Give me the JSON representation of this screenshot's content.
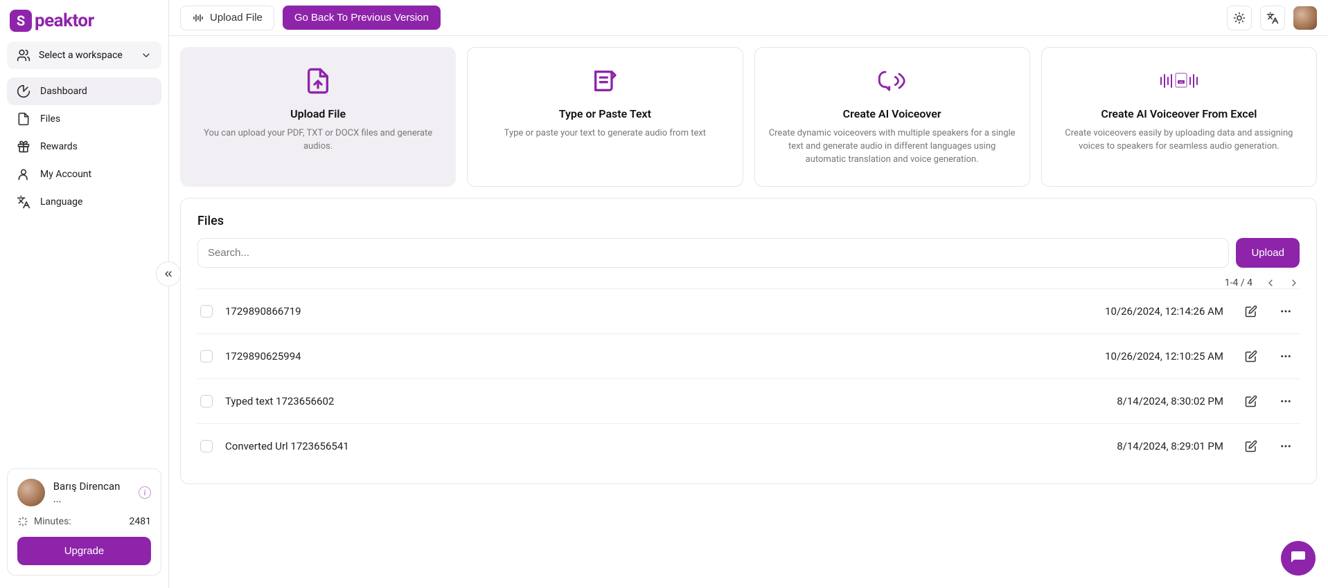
{
  "brand": {
    "name": "peaktor",
    "mark": "S"
  },
  "sidebar": {
    "workspace_label": "Select a workspace",
    "nav": [
      {
        "label": "Dashboard",
        "name": "dashboard",
        "active": true
      },
      {
        "label": "Files",
        "name": "files",
        "active": false
      },
      {
        "label": "Rewards",
        "name": "rewards",
        "active": false
      },
      {
        "label": "My Account",
        "name": "my-account",
        "active": false
      },
      {
        "label": "Language",
        "name": "language",
        "active": false
      }
    ],
    "user_name": "Barış Direncan ...",
    "minutes_label": "Minutes:",
    "minutes_value": "2481",
    "upgrade_label": "Upgrade"
  },
  "topbar": {
    "upload_label": "Upload File",
    "go_back_label": "Go Back To Previous Version"
  },
  "cards": [
    {
      "title": "Upload File",
      "desc": "You can upload your PDF, TXT or DOCX files and generate audios.",
      "name": "card-upload-file",
      "highlight": true
    },
    {
      "title": "Type or Paste Text",
      "desc": "Type or paste your text to generate audio from text",
      "name": "card-type-text",
      "highlight": false
    },
    {
      "title": "Create AI Voiceover",
      "desc": "Create dynamic voiceovers with multiple speakers for a single text and generate audio in different languages using automatic translation and voice generation.",
      "name": "card-voiceover",
      "highlight": false
    },
    {
      "title": "Create AI Voiceover From Excel",
      "desc": "Create voiceovers easily by uploading data and assigning voices to speakers for seamless audio generation.",
      "name": "card-voiceover-excel",
      "highlight": false
    }
  ],
  "files_panel": {
    "heading": "Files",
    "search_placeholder": "Search...",
    "upload_label": "Upload",
    "pagination_text": "1-4 / 4",
    "rows": [
      {
        "name": "1729890866719",
        "date": "10/26/2024, 12:14:26 AM"
      },
      {
        "name": "1729890625994",
        "date": "10/26/2024, 12:10:25 AM"
      },
      {
        "name": "Typed text 1723656602",
        "date": "8/14/2024, 8:30:02 PM"
      },
      {
        "name": "Converted Url 1723656541",
        "date": "8/14/2024, 8:29:01 PM"
      }
    ]
  },
  "colors": {
    "accent": "#8e24aa"
  }
}
